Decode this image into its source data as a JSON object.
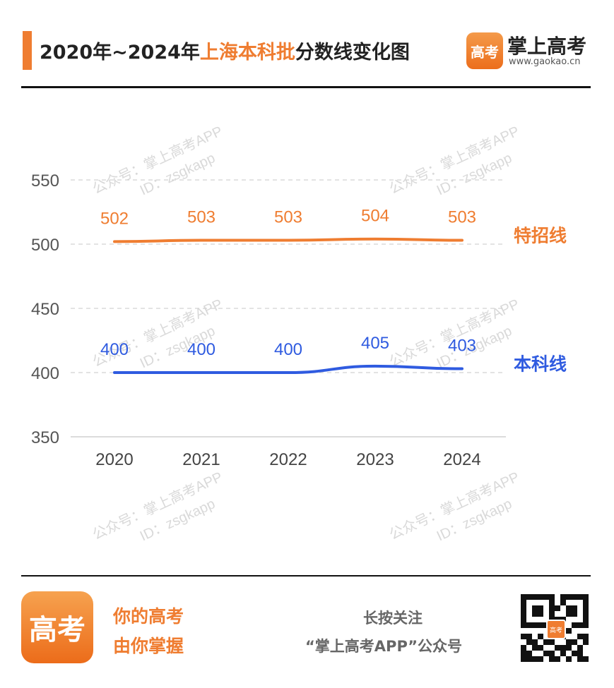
{
  "header": {
    "title_prefix": "2020年~2024年",
    "title_highlight": "上海本科批",
    "title_suffix": "分数线变化图",
    "brand_name": "掌上高考",
    "brand_url": "www.gaokao.cn",
    "brand_logo_text": "高考"
  },
  "watermark": {
    "line1": "公众号：掌上高考APP",
    "line2": "ID：zsgkapp"
  },
  "chart_data": {
    "type": "line",
    "categories": [
      "2020",
      "2021",
      "2022",
      "2023",
      "2024"
    ],
    "series": [
      {
        "name": "特招线",
        "values": [
          502,
          503,
          503,
          504,
          503
        ],
        "color": "#ef7d31"
      },
      {
        "name": "本科线",
        "values": [
          400,
          400,
          400,
          405,
          403
        ],
        "color": "#2f5be0"
      }
    ],
    "yticks": [
      350,
      400,
      450,
      500,
      550
    ],
    "ylim": [
      350,
      550
    ],
    "grid": true,
    "data_labels": true,
    "legend_placement": "right, at line end"
  },
  "footer": {
    "slogan_line1": "你的高考",
    "slogan_line2": "由你掌握",
    "follow_line1": "长按关注",
    "follow_line2": "“掌上高考APP”公众号",
    "logo_text": "高考",
    "qr_center_text": "高考"
  }
}
